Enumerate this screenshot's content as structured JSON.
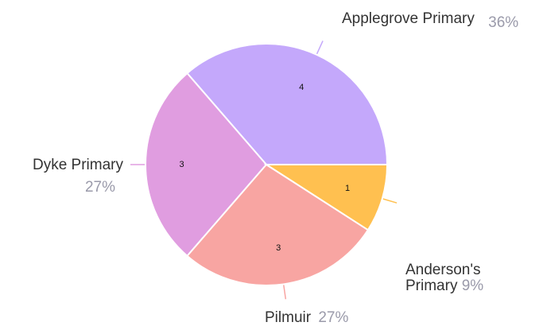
{
  "chart_data": {
    "type": "pie",
    "categories": [
      "Applegrove Primary",
      "Dyke Primary",
      "Pilmuir",
      "Anderson's Primary"
    ],
    "values": [
      4,
      3,
      3,
      1
    ],
    "percent_labels": [
      "36%",
      "27%",
      "27%",
      "9%"
    ],
    "colors": [
      "#c4a8fb",
      "#e09de0",
      "#f8a5a2",
      "#ffc050"
    ]
  }
}
